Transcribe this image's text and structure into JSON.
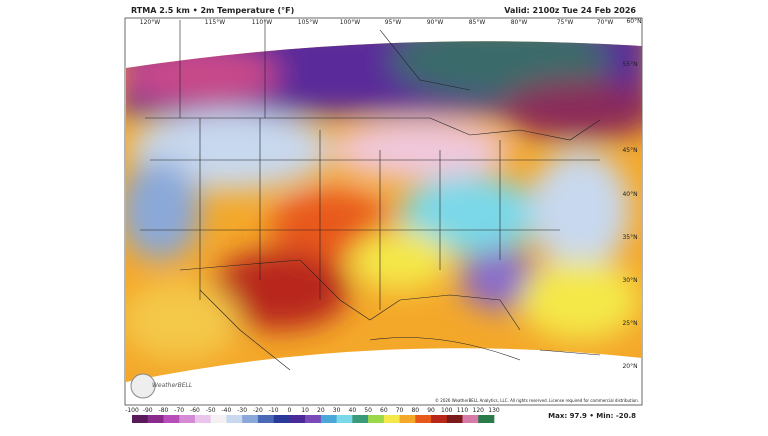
{
  "header": {
    "title": "RTMA 2.5 km • 2m Temperature (°F)",
    "valid": "Valid: 2100z Tue 24 Feb 2026"
  },
  "map": {
    "longitude_labels": [
      "120°W",
      "115°W",
      "110°W",
      "105°W",
      "100°W",
      "95°W",
      "90°W",
      "85°W",
      "80°W",
      "75°W",
      "70°W"
    ],
    "latitude_labels": [
      "60°N",
      "55°N",
      "45°N",
      "40°N",
      "35°N",
      "30°N",
      "25°N",
      "20°N"
    ],
    "logo": "WeatherBELL",
    "copyright": "© 2026 WeatherBELL Analytics, LLC. All rights reserved. License required for commercial distribution."
  },
  "colorbar": {
    "ticks": [
      -100,
      -90,
      -80,
      -70,
      -60,
      -50,
      -40,
      -30,
      -20,
      -10,
      0,
      10,
      20,
      30,
      40,
      50,
      60,
      70,
      80,
      90,
      100,
      110,
      120,
      130
    ],
    "colors": [
      "#5a1a5a",
      "#8a2a8a",
      "#b84cb8",
      "#d48ad4",
      "#eac4ea",
      "#f4f0f4",
      "#c8d8ee",
      "#8aa8d8",
      "#4a6ab8",
      "#2a3a98",
      "#4a2a98",
      "#7a4ab8",
      "#4aa8d8",
      "#7ad8e8",
      "#3a9a7a",
      "#9ad84a",
      "#f4e84a",
      "#f4a82a",
      "#e8581a",
      "#b8281a",
      "#7a1a1a",
      "#d87aa8",
      "#2a7a4a"
    ]
  },
  "stats": "Max: 97.9 • Min: -20.8"
}
